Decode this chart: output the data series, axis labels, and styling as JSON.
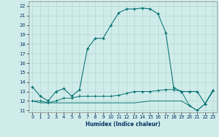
{
  "xlabel": "Humidex (Indice chaleur)",
  "x": [
    0,
    1,
    2,
    3,
    4,
    5,
    6,
    7,
    8,
    9,
    10,
    11,
    12,
    13,
    14,
    15,
    16,
    17,
    18,
    19,
    20,
    21,
    22,
    23
  ],
  "line1_y": [
    13.5,
    12.5,
    12.0,
    13.0,
    13.3,
    12.5,
    13.2,
    17.5,
    18.6,
    18.6,
    20.0,
    21.3,
    21.7,
    21.7,
    21.8,
    21.7,
    21.2,
    19.2,
    13.4,
    13.0,
    13.0,
    13.0,
    11.7,
    13.1
  ],
  "line2_y": [
    12.0,
    12.0,
    11.8,
    12.0,
    12.3,
    12.3,
    12.5,
    12.5,
    12.5,
    12.5,
    12.5,
    12.6,
    12.8,
    13.0,
    13.0,
    13.0,
    13.1,
    13.2,
    13.2,
    13.0,
    11.5,
    11.0,
    11.7,
    13.1
  ],
  "line3_y": [
    12.0,
    11.8,
    11.8,
    11.8,
    11.8,
    11.8,
    11.8,
    11.8,
    11.8,
    11.8,
    11.8,
    11.8,
    11.8,
    11.8,
    11.9,
    12.0,
    12.0,
    12.0,
    12.0,
    12.0,
    11.5,
    11.0,
    11.7,
    13.0
  ],
  "line_color": "#007070",
  "bg_color": "#d0ecea",
  "grid_color": "#b8d8d4",
  "ylim": [
    10.8,
    22.5
  ],
  "xlim": [
    -0.5,
    23.5
  ],
  "yticks": [
    11,
    12,
    13,
    14,
    15,
    16,
    17,
    18,
    19,
    20,
    21,
    22
  ],
  "xticks": [
    0,
    1,
    2,
    3,
    4,
    5,
    6,
    7,
    8,
    9,
    10,
    11,
    12,
    13,
    14,
    15,
    16,
    17,
    18,
    19,
    20,
    21,
    22,
    23
  ]
}
